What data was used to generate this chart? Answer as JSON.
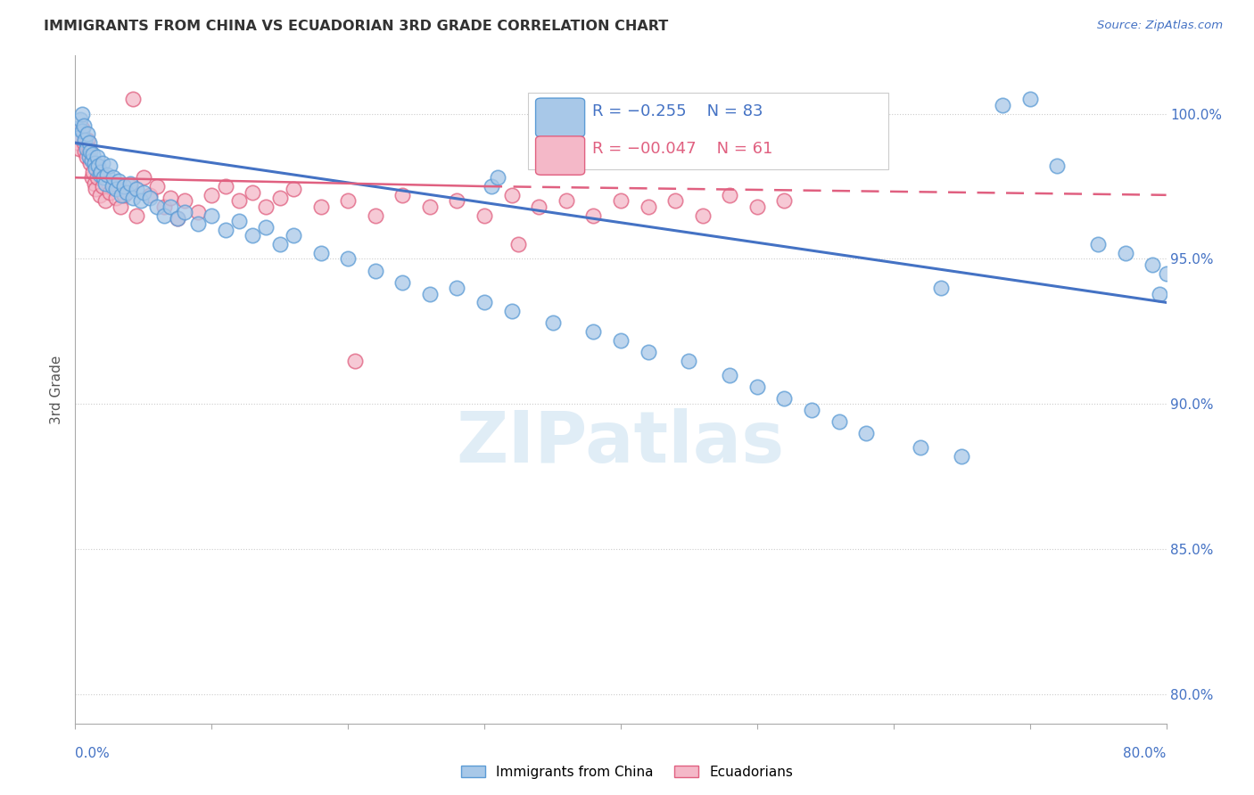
{
  "title": "IMMIGRANTS FROM CHINA VS ECUADORIAN 3RD GRADE CORRELATION CHART",
  "source": "Source: ZipAtlas.com",
  "ylabel": "3rd Grade",
  "y_ticks": [
    80.0,
    85.0,
    90.0,
    95.0,
    100.0
  ],
  "x_min": 0.0,
  "x_max": 80.0,
  "y_min": 79.0,
  "y_max": 102.0,
  "blue_color": "#a8c8e8",
  "blue_edge": "#5b9bd5",
  "pink_color": "#f4b8c8",
  "pink_edge": "#e06080",
  "trend_blue": "#4472c4",
  "trend_pink": "#e06080",
  "legend_R_blue": "-0.255",
  "legend_N_blue": "83",
  "legend_R_pink": "-0.047",
  "legend_N_pink": "61",
  "watermark": "ZIPatlas",
  "blue_x": [
    0.2,
    0.3,
    0.4,
    0.5,
    0.5,
    0.6,
    0.7,
    0.8,
    0.9,
    1.0,
    1.0,
    1.1,
    1.2,
    1.3,
    1.4,
    1.5,
    1.6,
    1.7,
    1.8,
    1.9,
    2.0,
    2.1,
    2.2,
    2.3,
    2.5,
    2.7,
    2.8,
    3.0,
    3.2,
    3.4,
    3.6,
    3.8,
    4.0,
    4.2,
    4.5,
    4.8,
    5.0,
    5.5,
    6.0,
    6.5,
    7.0,
    7.5,
    8.0,
    9.0,
    10.0,
    11.0,
    12.0,
    13.0,
    14.0,
    15.0,
    16.0,
    18.0,
    20.0,
    22.0,
    24.0,
    26.0,
    28.0,
    30.0,
    32.0,
    35.0,
    38.0,
    40.0,
    42.0,
    45.0,
    48.0,
    50.0,
    52.0,
    54.0,
    56.0,
    58.0,
    62.0,
    65.0,
    68.0,
    70.0,
    72.0,
    75.0,
    77.0,
    79.0,
    80.0,
    63.5,
    79.5,
    30.5,
    31.0
  ],
  "blue_y": [
    99.5,
    99.2,
    99.8,
    100.0,
    99.4,
    99.6,
    99.1,
    98.8,
    99.3,
    99.0,
    98.5,
    98.7,
    98.4,
    98.6,
    98.3,
    98.1,
    98.5,
    98.2,
    97.9,
    98.0,
    98.3,
    97.8,
    97.6,
    97.9,
    98.2,
    97.5,
    97.8,
    97.4,
    97.7,
    97.2,
    97.5,
    97.3,
    97.6,
    97.1,
    97.4,
    97.0,
    97.3,
    97.1,
    96.8,
    96.5,
    96.8,
    96.4,
    96.6,
    96.2,
    96.5,
    96.0,
    96.3,
    95.8,
    96.1,
    95.5,
    95.8,
    95.2,
    95.0,
    94.6,
    94.2,
    93.8,
    94.0,
    93.5,
    93.2,
    92.8,
    92.5,
    92.2,
    91.8,
    91.5,
    91.0,
    90.6,
    90.2,
    89.8,
    89.4,
    89.0,
    88.5,
    88.2,
    100.3,
    100.5,
    98.2,
    95.5,
    95.2,
    94.8,
    94.5,
    94.0,
    93.8,
    97.5,
    97.8
  ],
  "pink_x": [
    0.2,
    0.3,
    0.4,
    0.5,
    0.6,
    0.7,
    0.8,
    0.9,
    1.0,
    1.1,
    1.2,
    1.3,
    1.4,
    1.5,
    1.6,
    1.8,
    2.0,
    2.2,
    2.5,
    2.8,
    3.0,
    3.3,
    3.6,
    4.0,
    4.5,
    5.0,
    5.5,
    6.0,
    6.5,
    7.0,
    7.5,
    8.0,
    9.0,
    10.0,
    11.0,
    12.0,
    13.0,
    14.0,
    15.0,
    16.0,
    18.0,
    20.0,
    22.0,
    24.0,
    26.0,
    28.0,
    30.0,
    32.0,
    34.0,
    36.0,
    38.0,
    40.0,
    42.0,
    44.0,
    46.0,
    48.0,
    50.0,
    52.0,
    32.5,
    4.2,
    20.5
  ],
  "pink_y": [
    99.0,
    98.8,
    99.2,
    99.5,
    99.0,
    98.7,
    98.5,
    99.1,
    98.8,
    98.3,
    97.8,
    98.0,
    97.6,
    97.4,
    97.8,
    97.2,
    97.5,
    97.0,
    97.3,
    97.6,
    97.1,
    96.8,
    97.2,
    97.5,
    96.5,
    97.8,
    97.2,
    97.5,
    96.8,
    97.1,
    96.4,
    97.0,
    96.6,
    97.2,
    97.5,
    97.0,
    97.3,
    96.8,
    97.1,
    97.4,
    96.8,
    97.0,
    96.5,
    97.2,
    96.8,
    97.0,
    96.5,
    97.2,
    96.8,
    97.0,
    96.5,
    97.0,
    96.8,
    97.0,
    96.5,
    97.2,
    96.8,
    97.0,
    95.5,
    100.5,
    91.5
  ],
  "trend_blue_x0": 0.0,
  "trend_blue_y0": 99.0,
  "trend_blue_x1": 80.0,
  "trend_blue_y1": 93.5,
  "trend_pink_solid_x0": 0.0,
  "trend_pink_solid_y0": 97.8,
  "trend_pink_solid_x1": 30.0,
  "trend_pink_solid_y1": 97.5,
  "trend_pink_dash_x0": 30.0,
  "trend_pink_dash_y0": 97.5,
  "trend_pink_dash_x1": 80.0,
  "trend_pink_dash_y1": 97.2
}
